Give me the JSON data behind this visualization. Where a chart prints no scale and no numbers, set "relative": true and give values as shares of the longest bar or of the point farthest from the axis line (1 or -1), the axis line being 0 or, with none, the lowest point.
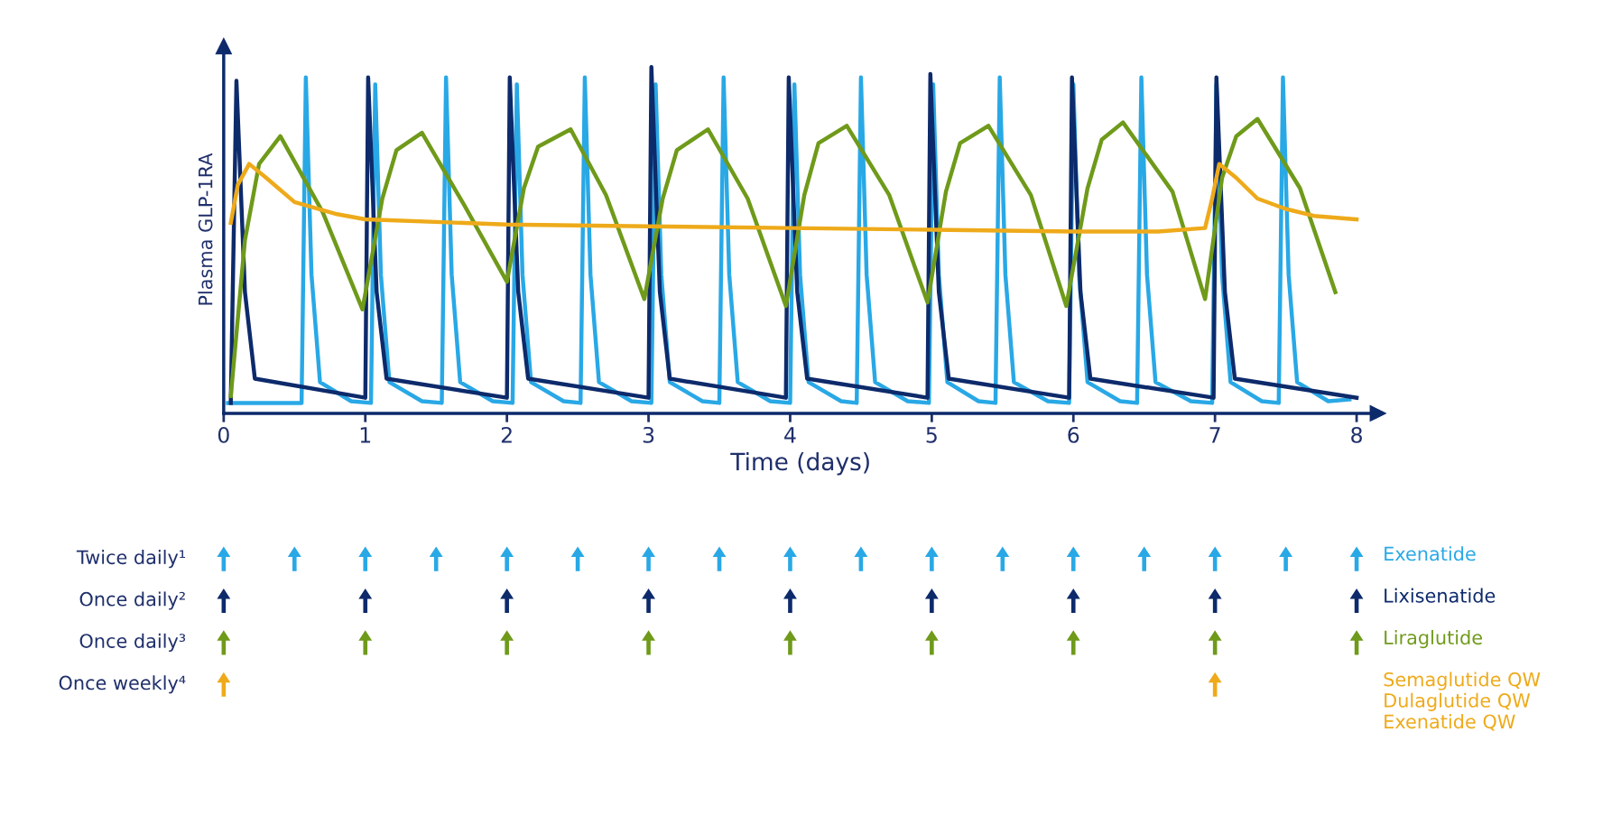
{
  "chart_data": [
    {
      "type": "line",
      "relative": true,
      "ylabel": "Plasma GLP-1RA",
      "xlabel": "Time (days)",
      "xlim": [
        0,
        8.15
      ],
      "xticks": [
        0,
        1,
        2,
        3,
        4,
        5,
        6,
        7,
        8
      ],
      "grid": false,
      "legend": false,
      "series": [
        {
          "color": "#29a8e6",
          "x": [
            0.03,
            0.55,
            0.58,
            0.62,
            0.68,
            0.9,
            1.04,
            1.07,
            1.11,
            1.17,
            1.4,
            1.54,
            1.57,
            1.61,
            1.67,
            1.9,
            2.04,
            2.07,
            2.11,
            2.17,
            2.4,
            2.52,
            2.55,
            2.59,
            2.65,
            2.88,
            3.02,
            3.05,
            3.09,
            3.15,
            3.38,
            3.5,
            3.53,
            3.57,
            3.63,
            3.86,
            4.0,
            4.03,
            4.07,
            4.13,
            4.36,
            4.47,
            4.5,
            4.54,
            4.6,
            4.83,
            4.98,
            5.01,
            5.05,
            5.11,
            5.33,
            5.45,
            5.48,
            5.52,
            5.58,
            5.82,
            5.97,
            6.0,
            6.04,
            6.1,
            6.33,
            6.45,
            6.48,
            6.52,
            6.58,
            6.83,
            6.98,
            7.01,
            7.05,
            7.11,
            7.33,
            7.45,
            7.48,
            7.52,
            7.58,
            7.8,
            7.95
          ],
          "values": [
            0.03,
            0.03,
            0.97,
            0.4,
            0.09,
            0.035,
            0.03,
            0.95,
            0.4,
            0.09,
            0.035,
            0.03,
            0.97,
            0.4,
            0.09,
            0.035,
            0.03,
            0.95,
            0.4,
            0.09,
            0.035,
            0.03,
            0.97,
            0.4,
            0.09,
            0.035,
            0.03,
            0.95,
            0.4,
            0.09,
            0.035,
            0.03,
            0.97,
            0.4,
            0.09,
            0.035,
            0.03,
            0.95,
            0.4,
            0.09,
            0.035,
            0.03,
            0.97,
            0.4,
            0.09,
            0.035,
            0.03,
            0.95,
            0.4,
            0.09,
            0.035,
            0.03,
            0.97,
            0.4,
            0.09,
            0.035,
            0.03,
            0.95,
            0.4,
            0.09,
            0.035,
            0.03,
            0.97,
            0.4,
            0.09,
            0.035,
            0.03,
            0.95,
            0.4,
            0.09,
            0.035,
            0.03,
            0.97,
            0.4,
            0.09,
            0.035,
            0.04
          ]
        },
        {
          "color": "#0d2a6b",
          "x": [
            0.05,
            0.09,
            0.15,
            0.22,
            1.0,
            1.02,
            1.08,
            1.15,
            2.0,
            2.02,
            2.08,
            2.15,
            3.0,
            3.02,
            3.08,
            3.15,
            3.97,
            3.99,
            4.05,
            4.12,
            4.97,
            4.99,
            5.05,
            5.12,
            5.97,
            5.99,
            6.05,
            6.12,
            6.99,
            7.01,
            7.07,
            7.14,
            8.0
          ],
          "values": [
            0.03,
            0.96,
            0.35,
            0.1,
            0.045,
            0.97,
            0.35,
            0.1,
            0.045,
            0.97,
            0.35,
            0.1,
            0.045,
            1.0,
            0.35,
            0.1,
            0.045,
            0.97,
            0.35,
            0.1,
            0.045,
            0.98,
            0.35,
            0.1,
            0.045,
            0.97,
            0.35,
            0.1,
            0.045,
            0.97,
            0.35,
            0.1,
            0.045
          ]
        },
        {
          "color": "#6f9a1a",
          "x": [
            0.05,
            0.15,
            0.25,
            0.4,
            0.7,
            0.98,
            1.12,
            1.22,
            1.4,
            1.7,
            2.0,
            2.12,
            2.22,
            2.45,
            2.7,
            2.97,
            3.1,
            3.2,
            3.42,
            3.7,
            3.97,
            4.1,
            4.2,
            4.4,
            4.7,
            4.97,
            5.1,
            5.2,
            5.4,
            5.7,
            5.95,
            6.1,
            6.2,
            6.35,
            6.7,
            6.93,
            7.05,
            7.15,
            7.3,
            7.6,
            7.85
          ],
          "values": [
            0.05,
            0.5,
            0.72,
            0.8,
            0.58,
            0.3,
            0.62,
            0.76,
            0.81,
            0.6,
            0.38,
            0.65,
            0.77,
            0.82,
            0.63,
            0.33,
            0.62,
            0.76,
            0.82,
            0.62,
            0.31,
            0.63,
            0.78,
            0.83,
            0.63,
            0.32,
            0.64,
            0.78,
            0.83,
            0.63,
            0.31,
            0.65,
            0.79,
            0.84,
            0.64,
            0.33,
            0.68,
            0.8,
            0.85,
            0.65,
            0.35
          ]
        },
        {
          "color": "#eeaa1a",
          "x": [
            0.05,
            0.1,
            0.18,
            0.3,
            0.5,
            0.8,
            1.0,
            2.0,
            3.0,
            4.0,
            5.0,
            6.0,
            6.6,
            6.93,
            6.98,
            7.03,
            7.15,
            7.3,
            7.5,
            7.7,
            8.0
          ],
          "values": [
            0.55,
            0.66,
            0.72,
            0.68,
            0.61,
            0.575,
            0.56,
            0.545,
            0.54,
            0.535,
            0.53,
            0.525,
            0.525,
            0.535,
            0.62,
            0.72,
            0.68,
            0.62,
            0.59,
            0.57,
            0.56
          ]
        }
      ]
    },
    {
      "type": "other",
      "annotations": [
        "Twice daily¹",
        "Once daily²",
        "Once daily³",
        "Once weekly⁴",
        "Exenatide",
        "Lixisenatide",
        "Liraglutide",
        "Semaglutide QW\nDulaglutide QW\nExenatide QW"
      ]
    }
  ]
}
